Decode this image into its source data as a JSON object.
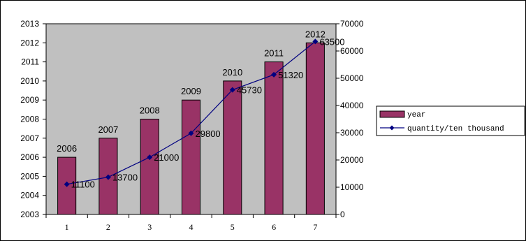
{
  "chart_data": {
    "type": "bar",
    "categories": [
      "1",
      "2",
      "3",
      "4",
      "5",
      "6",
      "7"
    ],
    "series": [
      {
        "name": "year",
        "kind": "bar",
        "axis": "left",
        "values": [
          2006,
          2007,
          2008,
          2009,
          2010,
          2011,
          2012
        ],
        "labels": [
          "2006",
          "2007",
          "2008",
          "2009",
          "2010",
          "2011",
          "2012"
        ],
        "color": "#993366"
      },
      {
        "name": "quantity/ten thousand",
        "kind": "line",
        "axis": "right",
        "values": [
          11100,
          13700,
          21000,
          29800,
          45730,
          51320,
          63500
        ],
        "labels": [
          "11100",
          "13700",
          "21000",
          "29800",
          "45730",
          "51320",
          "63500"
        ],
        "color": "#000080"
      }
    ],
    "y_left": {
      "range": [
        2003,
        2013
      ],
      "ticks": [
        "2003",
        "2004",
        "2005",
        "2006",
        "2007",
        "2008",
        "2009",
        "2010",
        "2011",
        "2012",
        "2013"
      ]
    },
    "y_right": {
      "range": [
        0,
        70000
      ],
      "ticks": [
        "0",
        "10000",
        "20000",
        "30000",
        "40000",
        "50000",
        "60000",
        "70000"
      ]
    },
    "plot_background": "#c0c0c0",
    "grid": false,
    "legend_position": "right"
  }
}
